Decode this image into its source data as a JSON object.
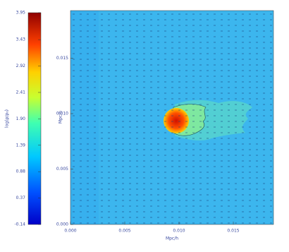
{
  "chart_data": {
    "type": "heatmap",
    "colorbar": {
      "label": "log(ρ/ρ₀)",
      "lim": [
        -0.14,
        3.95
      ],
      "ticks": [
        -0.14,
        0.37,
        0.88,
        1.39,
        {
          "value": 1.9,
          "label": "1.90"
        },
        2.41,
        2.92,
        3.43,
        3.95
      ]
    },
    "xlabel": "Mpc/h",
    "ylabel": "Mpc/h",
    "xlim": [
      0,
      0.0187
    ],
    "xticks": [
      {
        "value": 0,
        "label": "0.000"
      },
      {
        "value": 0.005,
        "label": "0.005"
      },
      {
        "value": 0.01,
        "label": "0.010"
      },
      {
        "value": 0.015,
        "label": "0.015"
      }
    ],
    "ylim": [
      0,
      0.0193
    ],
    "yticks": [
      {
        "value": 0,
        "label": "0.000"
      },
      {
        "value": 0.005,
        "label": "0.005"
      },
      {
        "value": 0.01,
        "label": "0.010"
      },
      {
        "value": 0.015,
        "label": "0.015"
      }
    ]
  }
}
